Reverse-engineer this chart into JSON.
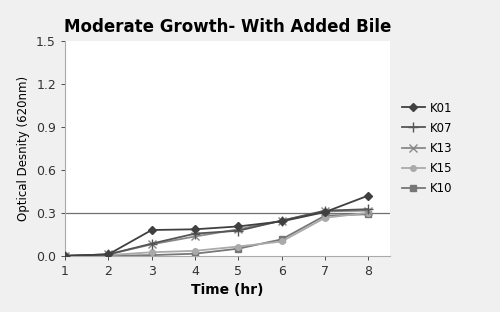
{
  "title": "Moderate Growth- With Added Bile",
  "xlabel": "Time (hr)",
  "ylabel": "Optical Desnity (620nm)",
  "xlim": [
    1,
    8.5
  ],
  "ylim": [
    0,
    1.5
  ],
  "xticks": [
    1,
    2,
    3,
    4,
    5,
    6,
    7,
    8
  ],
  "yticks": [
    0,
    0.3,
    0.6,
    0.9,
    1.2,
    1.5
  ],
  "hline_y": 0.3,
  "series": {
    "K01": {
      "x": [
        1,
        2,
        3,
        4,
        5,
        6,
        7,
        8
      ],
      "y": [
        0.0,
        0.01,
        0.18,
        0.185,
        0.205,
        0.24,
        0.305,
        0.42
      ],
      "color": "#404040",
      "marker": "D",
      "markersize": 4,
      "linewidth": 1.3,
      "zorder": 5
    },
    "K07": {
      "x": [
        1,
        2,
        3,
        4,
        5,
        6,
        7,
        8
      ],
      "y": [
        0.0,
        0.01,
        0.085,
        0.155,
        0.175,
        0.245,
        0.315,
        0.325
      ],
      "color": "#555555",
      "marker": "+",
      "markersize": 7,
      "linewidth": 1.3,
      "zorder": 4
    },
    "K13": {
      "x": [
        1,
        2,
        3,
        4,
        5,
        6,
        7,
        8
      ],
      "y": [
        0.0,
        0.01,
        0.08,
        0.135,
        0.185,
        0.245,
        0.31,
        0.315
      ],
      "color": "#888888",
      "marker": "x",
      "markersize": 6,
      "linewidth": 1.3,
      "zorder": 3
    },
    "K15": {
      "x": [
        1,
        2,
        3,
        4,
        5,
        6,
        7,
        8
      ],
      "y": [
        0.0,
        0.005,
        0.025,
        0.035,
        0.065,
        0.1,
        0.265,
        0.3
      ],
      "color": "#aaaaaa",
      "marker": "o",
      "markersize": 4,
      "linewidth": 1.3,
      "zorder": 2
    },
    "K10": {
      "x": [
        1,
        2,
        3,
        4,
        5,
        6,
        7,
        8
      ],
      "y": [
        0.0,
        0.0,
        0.005,
        0.015,
        0.05,
        0.115,
        0.28,
        0.29
      ],
      "color": "#777777",
      "marker": "s",
      "markersize": 4,
      "linewidth": 1.3,
      "zorder": 1
    }
  },
  "legend_order": [
    "K01",
    "K07",
    "K13",
    "K15",
    "K10"
  ],
  "background_color": "#ffffff",
  "fig_bg": "#f0f0f0"
}
